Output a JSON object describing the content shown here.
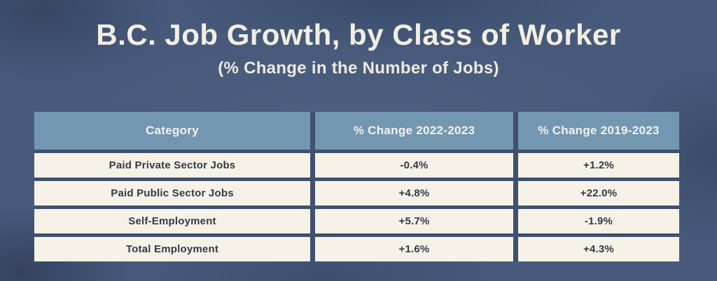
{
  "header": {
    "title": "B.C. Job Growth, by Class of Worker",
    "subtitle": "(% Change in the Number of Jobs)"
  },
  "chart_data": {
    "type": "table",
    "title": "B.C. Job Growth, by Class of Worker",
    "subtitle": "(% Change in the Number of Jobs)",
    "columns": [
      "Category",
      "% Change 2022-2023",
      "% Change 2019-2023"
    ],
    "rows": [
      [
        "Paid Private Sector Jobs",
        "-0.4%",
        "+1.2%"
      ],
      [
        "Paid Public Sector Jobs",
        "+4.8%",
        "+22.0%"
      ],
      [
        "Self-Employment",
        "+5.7%",
        "-1.9%"
      ],
      [
        "Total Employment",
        "+1.6%",
        "+4.3%"
      ]
    ],
    "values_numeric": {
      "pct_change_2022_2023": [
        -0.4,
        4.8,
        5.7,
        1.6
      ],
      "pct_change_2019_2023": [
        1.2,
        22.0,
        -1.9,
        4.3
      ]
    }
  },
  "colors": {
    "background": "#475a7b",
    "table_gap": "#3f516c",
    "header_bg": "#7397b1",
    "header_text": "#f4f2eb",
    "cell_bg": "#f7f2e8",
    "cell_text": "#323a46",
    "title_text": "#f3eee3",
    "subtitle_text": "#efeadf"
  }
}
